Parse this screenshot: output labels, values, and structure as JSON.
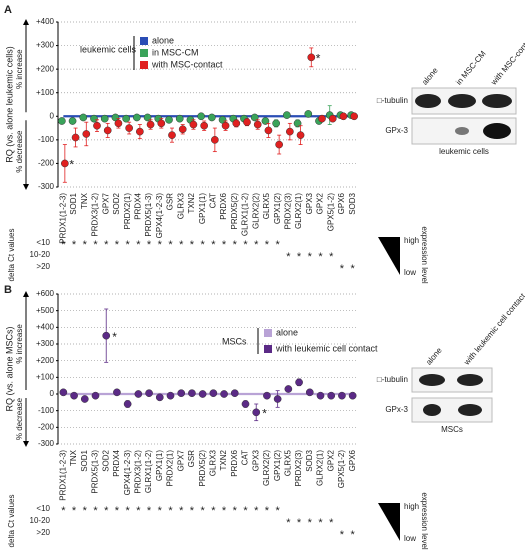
{
  "chart_data": [
    {
      "type": "dot",
      "panel": "A",
      "ylabel": "RQ (vs. alone leukemic cells)",
      "increase_label": "% increase",
      "decrease_label": "% decrease",
      "legend_title": "leukemic cells",
      "grid": true,
      "ylim": [
        -300,
        400
      ],
      "yticks": [
        {
          "value": 400,
          "label": "+400"
        },
        {
          "value": 300,
          "label": "+300"
        },
        {
          "value": 200,
          "label": "+200"
        },
        {
          "value": 100,
          "label": "+100"
        },
        0,
        -100,
        -200,
        -300
      ],
      "categories": [
        "PRDX1(1-2-3)",
        "SOD1",
        "TNX",
        "PRDX3(1-2)",
        "GPX7",
        "SOD2",
        "PRDX2(1)",
        "PRDX4",
        "PRDX5(1-3)",
        "GPX4(1-2-3)",
        "GSR",
        "GLRX3",
        "TXN2",
        "GPX1(1)",
        "CAT",
        "PRDX6",
        "PRDX5(2)",
        "GLRX1(1-2)",
        "GLRX2(2)",
        "GLRX5",
        "GPX1(2)",
        "PRDX2(3)",
        "GLRX2(1)",
        "GPX3",
        "GPX2",
        "GPX5(1-2)",
        "GPX6",
        "SOD3"
      ],
      "series": [
        {
          "name": "alone",
          "color": "#2a4db5",
          "role": "baseline",
          "values": [
            0,
            0,
            0,
            0,
            0,
            0,
            0,
            0,
            0,
            0,
            0,
            0,
            0,
            0,
            0,
            0,
            0,
            0,
            0,
            0,
            0,
            0,
            0,
            0,
            0,
            0,
            0,
            0
          ]
        },
        {
          "name": "in MSC-CM",
          "color": "#3aa35a",
          "values": [
            -20,
            -20,
            -5,
            -10,
            -10,
            -5,
            -10,
            -5,
            -5,
            -10,
            -15,
            -10,
            -15,
            0,
            -5,
            -15,
            -10,
            -10,
            -5,
            -20,
            -30,
            5,
            -30,
            10,
            -20,
            5,
            5,
            5
          ],
          "errors": [
            10,
            10,
            8,
            10,
            8,
            8,
            10,
            8,
            8,
            10,
            10,
            8,
            10,
            8,
            8,
            10,
            8,
            8,
            8,
            10,
            15,
            8,
            15,
            8,
            10,
            40,
            5,
            5
          ]
        },
        {
          "name": "with MSC-contact",
          "color": "#e02020",
          "values": [
            -200,
            -90,
            -75,
            -40,
            -60,
            -30,
            -50,
            -65,
            -35,
            -30,
            -80,
            -55,
            -35,
            -40,
            -100,
            -40,
            -30,
            -25,
            -35,
            -60,
            -120,
            -65,
            -80,
            250,
            -10,
            -10,
            0,
            0
          ],
          "errors": [
            80,
            40,
            50,
            25,
            30,
            20,
            25,
            30,
            20,
            20,
            30,
            20,
            20,
            20,
            50,
            20,
            15,
            15,
            20,
            30,
            40,
            35,
            40,
            40,
            10,
            10,
            5,
            5
          ]
        }
      ],
      "annotations": [
        {
          "text": "*",
          "category": "PRDX1(1-2-3)",
          "series": "with MSC-contact"
        },
        {
          "text": "*",
          "category": "GPX3",
          "series": "with MSC-contact"
        }
      ],
      "delta_ct": {
        "label": "delta Ct values",
        "rows": [
          "<10",
          "10-20",
          ">20"
        ],
        "marker": "*",
        "levels": [
          "<10",
          "<10",
          "<10",
          "<10",
          "<10",
          "<10",
          "<10",
          "<10",
          "<10",
          "<10",
          "<10",
          "<10",
          "<10",
          "<10",
          "<10",
          "<10",
          "<10",
          "<10",
          "<10",
          "<10",
          "<10",
          "10-20",
          "10-20",
          "10-20",
          "10-20",
          "10-20",
          ">20",
          ">20"
        ]
      },
      "expression": {
        "high": "high",
        "low": "low",
        "label": "expression level"
      }
    },
    {
      "type": "dot",
      "panel": "B",
      "ylabel": "RQ (vs. alone MSCs)",
      "increase_label": "% increase",
      "decrease_label": "% decrease",
      "legend_title": "MSCs",
      "grid": true,
      "ylim": [
        -300,
        600
      ],
      "yticks": [
        {
          "value": 600,
          "label": "+600"
        },
        {
          "value": 500,
          "label": "+500"
        },
        {
          "value": 400,
          "label": "+400"
        },
        {
          "value": 300,
          "label": "+300"
        },
        {
          "value": 200,
          "label": "+200"
        },
        {
          "value": 100,
          "label": "+100"
        },
        0,
        -100,
        -200,
        -300
      ],
      "categories": [
        "PRDX1(1-2-3)",
        "TNX",
        "SOD1",
        "PRDX5(1-3)",
        "SOD2",
        "PRDX4",
        "GPX4(1-2-3)",
        "PRDX3(1-2)",
        "GLRX1(1-2)",
        "GPX1(1)",
        "PRDX2(1)",
        "GPX7",
        "GSR",
        "PRDX5(2)",
        "GLRX3",
        "TXN2",
        "PRDX6",
        "CAT",
        "GPX3",
        "GLRX2(2)",
        "GPX1(2)",
        "GLRX5",
        "PRDX2(3)",
        "SOD3",
        "GLRX2(1)",
        "GPX2",
        "GPX5(1-2)",
        "GPX6"
      ],
      "series": [
        {
          "name": "alone",
          "color": "#b9a3d6",
          "role": "baseline",
          "values": [
            0,
            0,
            0,
            0,
            0,
            0,
            0,
            0,
            0,
            0,
            0,
            0,
            0,
            0,
            0,
            0,
            0,
            0,
            0,
            0,
            0,
            0,
            0,
            0,
            0,
            0,
            0,
            0
          ]
        },
        {
          "name": "with leukemic cell contact",
          "color": "#5b2a86",
          "values": [
            10,
            -10,
            -30,
            -10,
            350,
            10,
            -60,
            0,
            5,
            -20,
            -10,
            5,
            5,
            0,
            5,
            0,
            5,
            -60,
            -110,
            -10,
            -30,
            30,
            70,
            10,
            -10,
            -10,
            -10,
            -10
          ],
          "errors": [
            8,
            10,
            15,
            10,
            160,
            8,
            20,
            8,
            8,
            15,
            10,
            8,
            8,
            8,
            8,
            8,
            8,
            20,
            50,
            10,
            50,
            10,
            20,
            8,
            10,
            8,
            8,
            8
          ]
        }
      ],
      "annotations": [
        {
          "text": "*",
          "category": "SOD2",
          "series": "with leukemic cell contact"
        },
        {
          "text": "*",
          "category": "GPX3",
          "series": "with leukemic cell contact"
        }
      ],
      "delta_ct": {
        "label": "delta Ct values",
        "rows": [
          "<10",
          "10-20",
          ">20"
        ],
        "marker": "*",
        "levels": [
          "<10",
          "<10",
          "<10",
          "<10",
          "<10",
          "<10",
          "<10",
          "<10",
          "<10",
          "<10",
          "<10",
          "<10",
          "<10",
          "<10",
          "<10",
          "<10",
          "<10",
          "<10",
          "<10",
          "<10",
          "<10",
          "10-20",
          "10-20",
          "10-20",
          "10-20",
          "10-20",
          ">20",
          ">20"
        ]
      },
      "expression": {
        "high": "high",
        "low": "low",
        "label": "expression level"
      }
    }
  ],
  "blots": [
    {
      "lanes": [
        "alone",
        "in MSC-CM",
        "with MSC-contact"
      ],
      "rows": [
        "□-tubulin",
        "GPx-3"
      ],
      "caption": "leukemic cells"
    },
    {
      "lanes": [
        "alone",
        "with leukemic cell contact"
      ],
      "rows": [
        "□-tubulin",
        "GPx-3"
      ],
      "caption": "MSCs"
    }
  ]
}
